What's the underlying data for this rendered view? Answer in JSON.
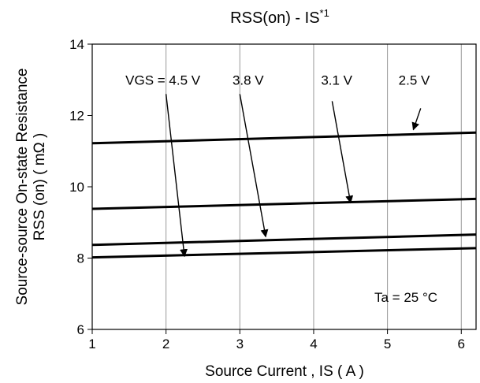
{
  "chart_data": {
    "type": "line",
    "title": "RSS(on) - IS",
    "title_superscript": "*1",
    "xlabel": "Source Current , IS ( A )",
    "ylabel_line1": "Source-source On-state Resistance",
    "ylabel_line2": "RSS (on)  ( mΩ )",
    "xlim": [
      1,
      6.2
    ],
    "ylim": [
      6,
      14
    ],
    "x_ticks": [
      1,
      2,
      3,
      4,
      5,
      6
    ],
    "y_ticks": [
      6,
      8,
      10,
      12,
      14
    ],
    "grid": "vertical",
    "series": [
      {
        "name": "VGS = 4.5 V",
        "x": [
          1,
          6.2
        ],
        "y": [
          8.02,
          8.28
        ]
      },
      {
        "name": "3.8 V",
        "x": [
          1,
          6.2
        ],
        "y": [
          8.37,
          8.66
        ]
      },
      {
        "name": "3.1 V",
        "x": [
          1,
          6.2
        ],
        "y": [
          9.38,
          9.66
        ]
      },
      {
        "name": "2.5 V",
        "x": [
          1,
          6.2
        ],
        "y": [
          11.22,
          11.52
        ]
      }
    ],
    "annotations": [
      {
        "text": "VGS = 4.5 V",
        "x": 1.45,
        "y": 13.0,
        "arrow_from": [
          2.0,
          12.6
        ],
        "arrow_to": [
          2.25,
          8.05
        ]
      },
      {
        "text": "3.8 V",
        "x": 2.9,
        "y": 13.0,
        "arrow_from": [
          3.0,
          12.6
        ],
        "arrow_to": [
          3.35,
          8.6
        ]
      },
      {
        "text": "3.1 V",
        "x": 4.1,
        "y": 13.0,
        "arrow_from": [
          4.25,
          12.4
        ],
        "arrow_to": [
          4.5,
          9.55
        ]
      },
      {
        "text": "2.5 V",
        "x": 5.15,
        "y": 13.0,
        "arrow_from": [
          5.45,
          12.2
        ],
        "arrow_to": [
          5.35,
          11.6
        ]
      }
    ],
    "condition": "Ta = 25 °C"
  }
}
